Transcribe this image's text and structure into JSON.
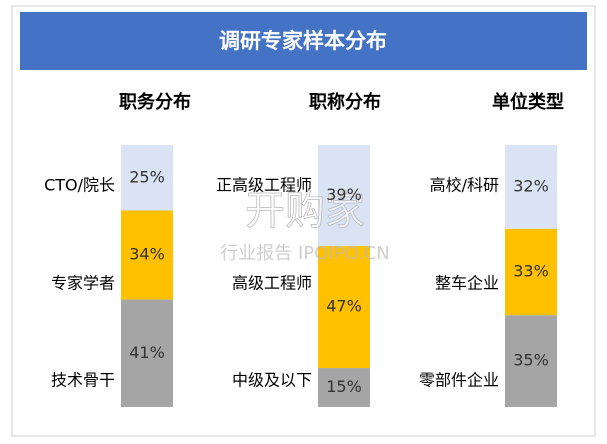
{
  "title": "调研专家样本分布",
  "chart_data": [
    {
      "type": "stacked-bar",
      "title": "职务分布",
      "categories": [
        "CTO/院长",
        "专家学者",
        "技术骨干"
      ],
      "values": [
        25,
        34,
        41
      ],
      "value_labels": [
        "25%",
        "34%",
        "41%"
      ],
      "colors": [
        "#dae3f3",
        "#ffc000",
        "#a5a5a5"
      ]
    },
    {
      "type": "stacked-bar",
      "title": "职称分布",
      "categories": [
        "正高级工程师",
        "高级工程师",
        "中级及以下"
      ],
      "values": [
        39,
        47,
        15
      ],
      "value_labels": [
        "39%",
        "47%",
        "15%"
      ],
      "colors": [
        "#dae3f3",
        "#ffc000",
        "#a5a5a5"
      ]
    },
    {
      "type": "stacked-bar",
      "title": "单位类型",
      "categories": [
        "高校/科研",
        "整车企业",
        "零部件企业"
      ],
      "values": [
        32,
        33,
        35
      ],
      "value_labels": [
        "32%",
        "33%",
        "35%"
      ],
      "colors": [
        "#dae3f3",
        "#ffc000",
        "#a5a5a5"
      ]
    }
  ],
  "watermark": [
    "开购家",
    "行业报告 IPOIPO.CN"
  ]
}
